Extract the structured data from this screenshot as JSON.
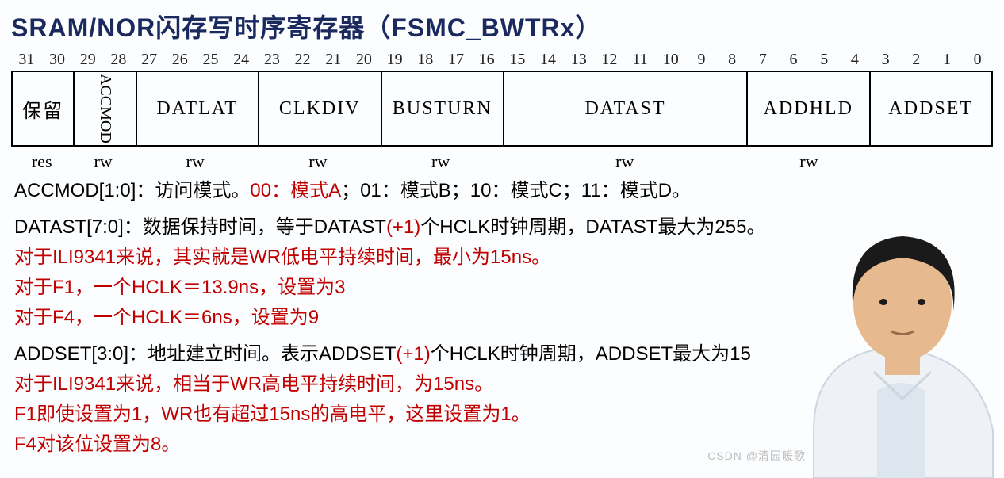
{
  "title": "SRAM/NOR闪存写时序寄存器（FSMC_BWTRx）",
  "bits": [
    "31",
    "30",
    "29",
    "28",
    "27",
    "26",
    "25",
    "24",
    "23",
    "22",
    "21",
    "20",
    "19",
    "18",
    "17",
    "16",
    "15",
    "14",
    "13",
    "12",
    "11",
    "10",
    "9",
    "8",
    "7",
    "6",
    "5",
    "4",
    "3",
    "2",
    "1",
    "0"
  ],
  "fields": [
    {
      "name": "保留",
      "span": 2,
      "vertical": false
    },
    {
      "name": "ACCMOD",
      "span": 2,
      "vertical": true
    },
    {
      "name": "DATLAT",
      "span": 4,
      "vertical": false
    },
    {
      "name": "CLKDIV",
      "span": 4,
      "vertical": false
    },
    {
      "name": "BUSTURN",
      "span": 4,
      "vertical": false
    },
    {
      "name": "DATAST",
      "span": 8,
      "vertical": false
    },
    {
      "name": "ADDHLD",
      "span": 4,
      "vertical": false
    },
    {
      "name": "ADDSET",
      "span": 4,
      "vertical": false
    }
  ],
  "access": [
    {
      "label": "res",
      "span": 2
    },
    {
      "label": "rw",
      "span": 2
    },
    {
      "label": "rw",
      "span": 4
    },
    {
      "label": "rw",
      "span": 4
    },
    {
      "label": "rw",
      "span": 4
    },
    {
      "label": "rw",
      "span": 8
    },
    {
      "label": "rw",
      "span": 4
    },
    {
      "label": "",
      "span": 4
    }
  ],
  "lines": [
    {
      "segments": [
        {
          "t": "ACCMOD[1:0]：访问模式。",
          "c": "black"
        },
        {
          "t": "00：模式A",
          "c": "red"
        },
        {
          "t": "；01：模式B；10：模式C；11：模式D。",
          "c": "black"
        }
      ]
    },
    {
      "gap": true,
      "segments": [
        {
          "t": "DATAST[7:0]：数据保持时间，等于DATAST",
          "c": "black"
        },
        {
          "t": "(+1)",
          "c": "red"
        },
        {
          "t": "个HCLK时钟周期，DATAST最大为255。",
          "c": "black"
        }
      ]
    },
    {
      "segments": [
        {
          "t": "对于ILI9341来说，其实就是WR低电平持续时间，最小为15ns。",
          "c": "red"
        }
      ]
    },
    {
      "segments": [
        {
          "t": "对于F1，一个HCLK＝13.9ns，设置为3",
          "c": "red"
        }
      ]
    },
    {
      "segments": [
        {
          "t": "对于F4，一个HCLK＝6ns，设置为9",
          "c": "red"
        }
      ]
    },
    {
      "gap": true,
      "segments": [
        {
          "t": "ADDSET[3:0]：地址建立时间。表示ADDSET",
          "c": "black"
        },
        {
          "t": "(+1)",
          "c": "red"
        },
        {
          "t": "个HCLK时钟周期，ADDSET最大为15",
          "c": "black"
        }
      ]
    },
    {
      "segments": [
        {
          "t": "对于ILI9341来说，相当于WR高电平持续时间，为15ns。",
          "c": "red"
        }
      ]
    },
    {
      "segments": [
        {
          "t": "F1即使设置为1，WR也有超过15ns的高电平，这里设置为1。",
          "c": "red"
        }
      ]
    },
    {
      "segments": [
        {
          "t": "F4对该位设置为8。",
          "c": "red"
        }
      ]
    }
  ],
  "watermark": "CSDN @清园暖歌",
  "colors": {
    "title": "#1a2a5e",
    "red": "#c00000",
    "black": "#000000",
    "bg": "#fcfdfe"
  },
  "person": {
    "shirt": "#eef2f6",
    "skin": "#e6b98f",
    "hair": "#1a1a1a"
  }
}
